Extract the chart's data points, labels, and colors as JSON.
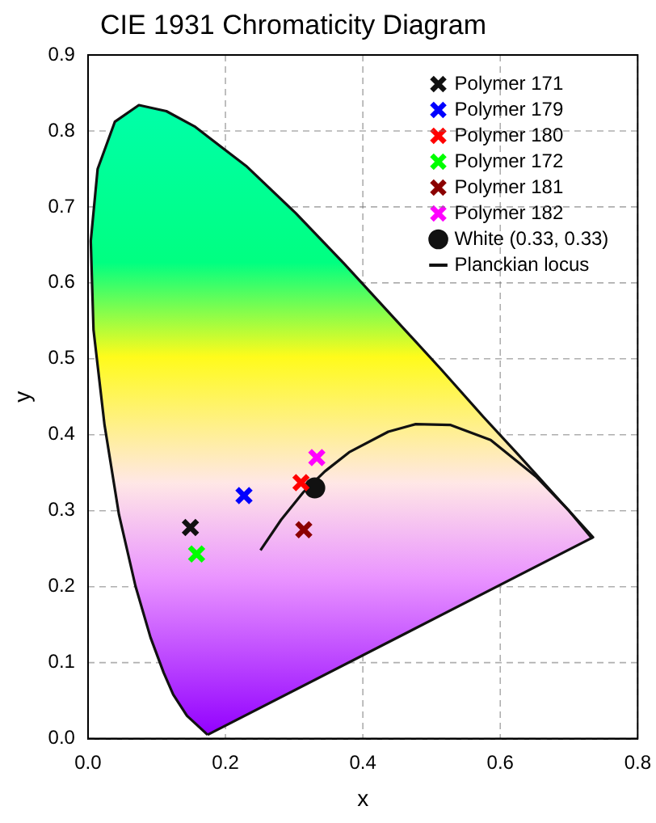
{
  "chart_data": {
    "type": "scatter",
    "title": "CIE 1931 Chromaticity Diagram",
    "xlabel": "x",
    "ylabel": "y",
    "xlim": [
      0,
      0.8
    ],
    "ylim": [
      0,
      0.9
    ],
    "xticks": [
      {
        "value": 0,
        "label": "0.0"
      },
      0.2,
      0.4,
      0.6,
      0.8
    ],
    "yticks": [
      {
        "value": 0,
        "label": "0.0"
      },
      0.1,
      0.2,
      0.3,
      0.4,
      0.5,
      0.6,
      0.7,
      0.8,
      0.9
    ],
    "grid": true,
    "legend": "top right",
    "series": [
      {
        "type": "area",
        "color": "#111111",
        "marker": "none",
        "x": [
          0.174,
          0.144,
          0.124,
          0.11,
          0.091,
          0.069,
          0.045,
          0.024,
          0.008,
          0.004,
          0.014,
          0.039,
          0.074,
          0.114,
          0.155,
          0.23,
          0.302,
          0.373,
          0.444,
          0.513,
          0.575,
          0.627,
          0.692,
          0.719,
          0.735,
          0.174
        ],
        "values": [
          0.005,
          0.03,
          0.058,
          0.087,
          0.133,
          0.201,
          0.295,
          0.413,
          0.538,
          0.655,
          0.75,
          0.812,
          0.834,
          0.826,
          0.806,
          0.754,
          0.692,
          0.625,
          0.555,
          0.487,
          0.424,
          0.373,
          0.308,
          0.281,
          0.265,
          0.005
        ]
      },
      {
        "name": "Polymer 171",
        "color": "#111111",
        "marker": "cross",
        "x": [
          0.149
        ],
        "values": [
          0.278
        ]
      },
      {
        "name": "Polymer 179",
        "color": "#0000ff",
        "marker": "cross",
        "x": [
          0.227
        ],
        "values": [
          0.32
        ]
      },
      {
        "name": "Polymer 180",
        "color": "#ff0000",
        "marker": "cross",
        "x": [
          0.31
        ],
        "values": [
          0.337
        ]
      },
      {
        "name": "Polymer 172",
        "color": "#00ff00",
        "marker": "cross",
        "x": [
          0.158
        ],
        "values": [
          0.243
        ]
      },
      {
        "name": "Polymer 181",
        "color": "#8b0000",
        "marker": "cross",
        "x": [
          0.314
        ],
        "values": [
          0.275
        ]
      },
      {
        "name": "Polymer 182",
        "color": "#ff00ff",
        "marker": "cross",
        "x": [
          0.333
        ],
        "values": [
          0.37
        ]
      },
      {
        "name": "White (0.33, 0.33)",
        "color": "#111111",
        "marker": "circle",
        "x": [
          0.33
        ],
        "values": [
          0.33
        ]
      },
      {
        "name": "Planckian locus",
        "type": "line",
        "color": "#111111",
        "marker": "none",
        "x": [
          0.251,
          0.281,
          0.313,
          0.345,
          0.38,
          0.437,
          0.477,
          0.527,
          0.586,
          0.652,
          0.7,
          0.734
        ],
        "values": [
          0.248,
          0.288,
          0.324,
          0.352,
          0.377,
          0.404,
          0.414,
          0.413,
          0.393,
          0.345,
          0.3,
          0.263
        ]
      }
    ]
  }
}
